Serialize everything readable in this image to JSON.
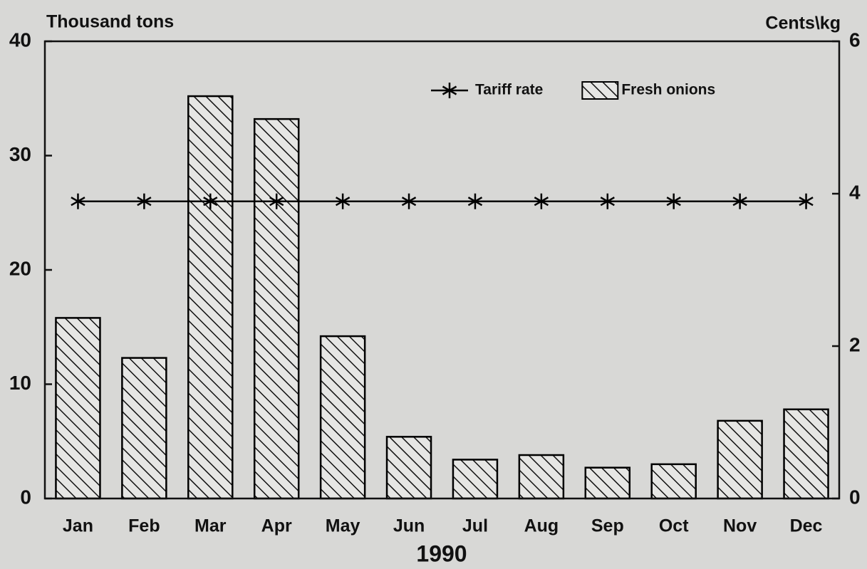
{
  "chart_data": {
    "type": "bar",
    "x_label": "1990",
    "y_label": "Thousand tons",
    "y2_label": "Cents\\kg",
    "categories": [
      "Jan",
      "Feb",
      "Mar",
      "Apr",
      "May",
      "Jun",
      "Jul",
      "Aug",
      "Sep",
      "Oct",
      "Nov",
      "Dec"
    ],
    "series": [
      {
        "name": "Tariff rate",
        "type": "line",
        "axis": "y2",
        "color": "#000000",
        "values": [
          3.9,
          3.9,
          3.9,
          3.9,
          3.9,
          3.9,
          3.9,
          3.9,
          3.9,
          3.9,
          3.9,
          3.9
        ]
      },
      {
        "name": "Fresh onions",
        "type": "bar",
        "color": "#000000",
        "values": [
          15.8,
          12.3,
          35.2,
          33.2,
          14.2,
          5.4,
          3.4,
          3.8,
          2.7,
          3.0,
          6.8,
          7.8
        ]
      }
    ],
    "ylim": [
      0,
      40
    ],
    "yticks": [
      0,
      10,
      20,
      30,
      40
    ],
    "y2lim": [
      0,
      6
    ],
    "y2ticks": [
      0,
      2,
      4,
      6
    ],
    "legend": "top-right",
    "grid": false
  }
}
